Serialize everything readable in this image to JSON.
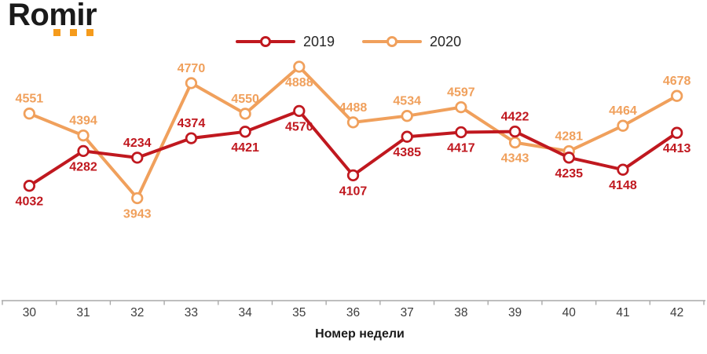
{
  "logo": {
    "text": "Romir",
    "text_color": "#1A1A1A",
    "dot_color": "#F59B1C"
  },
  "chart_data": {
    "type": "line",
    "title": "",
    "xlabel": "Номер недели",
    "ylabel": "",
    "categories": [
      "30",
      "31",
      "32",
      "33",
      "34",
      "35",
      "36",
      "37",
      "38",
      "39",
      "40",
      "41",
      "42"
    ],
    "ylim": [
      3850,
      4950
    ],
    "grid": false,
    "legend_position": "top-center",
    "marker": "open-circle",
    "axis": {
      "line_color": "#A9A9A9",
      "tick_color": "#A9A9A9",
      "tick_label_color": "#3D3D3D",
      "title_color": "#1A1A1A"
    },
    "series": [
      {
        "name": "2019",
        "color": "#C0181F",
        "values": [
          4032,
          4282,
          4234,
          4374,
          4421,
          4570,
          4107,
          4385,
          4417,
          4422,
          4235,
          4148,
          4413
        ],
        "label_side": [
          "below",
          "below",
          "above",
          "above",
          "below",
          "below",
          "below",
          "below",
          "below",
          "above",
          "below",
          "below",
          "below"
        ]
      },
      {
        "name": "2020",
        "color": "#F0A05C",
        "values": [
          4551,
          4394,
          3943,
          4770,
          4550,
          4888,
          4488,
          4534,
          4597,
          4343,
          4281,
          4464,
          4678
        ],
        "label_side": [
          "above",
          "above",
          "below",
          "above",
          "above",
          "below",
          "above",
          "above",
          "above",
          "below",
          "above",
          "above",
          "above"
        ]
      }
    ]
  }
}
